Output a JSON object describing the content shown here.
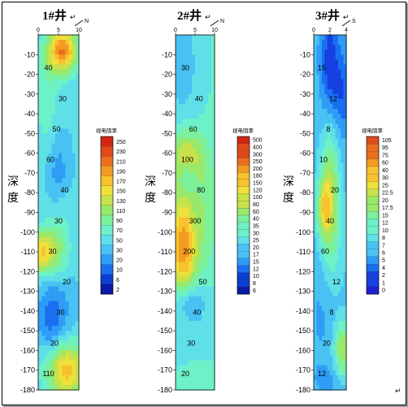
{
  "colors": {
    "ramp1": [
      "#0a1aa8",
      "#0b3fd2",
      "#1a6ff0",
      "#2f9cf5",
      "#49c2f3",
      "#5fe0e8",
      "#6ef0c8",
      "#7cf09a",
      "#9ae86a",
      "#c7e24c",
      "#efe03a",
      "#f7c22e",
      "#f39a23",
      "#ea6e1d",
      "#de4a19",
      "#d02814"
    ],
    "ramp2": [
      "#0a1aa8",
      "#0b3fd2",
      "#1a6ff0",
      "#2f9cf5",
      "#49c2f3",
      "#5fe0e8",
      "#6ef0c8",
      "#7cf09a",
      "#9ae86a",
      "#c7e24c",
      "#efe03a",
      "#f7c22e",
      "#f39a23",
      "#ea6e1d",
      "#de4a19",
      "#d02814"
    ],
    "ramp3": [
      "#2020d0",
      "#1640e0",
      "#1a6ff0",
      "#2f9cf5",
      "#49c2f3",
      "#5fe0e8",
      "#6ef0c8",
      "#7cf09a",
      "#9ae86a",
      "#c7e24c",
      "#efe03a",
      "#f7c22e",
      "#f39a23",
      "#ea6e1d",
      "#de4a19"
    ]
  },
  "chart_data": [
    {
      "type": "heatmap",
      "title": "1#井",
      "north_label": "N",
      "xlim": [
        0,
        10
      ],
      "x_ticks": [
        "0",
        "5",
        "10"
      ],
      "ylim": [
        -180,
        0
      ],
      "y_ticks": [
        "-10",
        "-20",
        "-30",
        "-40",
        "-50",
        "-60",
        "-70",
        "-80",
        "-90",
        "-100",
        "-110",
        "-120",
        "-130",
        "-140",
        "-150",
        "-160",
        "-170",
        "-180"
      ],
      "ylabel": "深度",
      "legend_title": "视电阻率",
      "legend_levels": [
        "250",
        "230",
        "210",
        "190",
        "170",
        "150",
        "130",
        "110",
        "90",
        "70",
        "50",
        "30",
        "20",
        "10",
        "6",
        "2"
      ],
      "contour_labels": [
        "40",
        "30",
        "50",
        "60",
        "40",
        "30",
        "30",
        "20",
        "30",
        "20",
        "110"
      ]
    },
    {
      "type": "heatmap",
      "title": "2#井",
      "north_label": "N",
      "xlim": [
        0,
        10
      ],
      "x_ticks": [
        "0",
        "5",
        "10"
      ],
      "ylim": [
        -180,
        0
      ],
      "y_ticks": [
        "-10",
        "-20",
        "-30",
        "-40",
        "-50",
        "-60",
        "-70",
        "-80",
        "-90",
        "-100",
        "-110",
        "-120",
        "-130",
        "-140",
        "-150",
        "-160",
        "-170",
        "-180"
      ],
      "ylabel": "深度",
      "legend_title": "视电阻率",
      "legend_levels": [
        "500",
        "400",
        "300",
        "250",
        "200",
        "180",
        "150",
        "120",
        "100",
        "80",
        "60",
        "40",
        "35",
        "30",
        "25",
        "20",
        "17",
        "15",
        "12",
        "10",
        "8",
        "6"
      ],
      "contour_labels": [
        "30",
        "40",
        "60",
        "100",
        "80",
        "300",
        "200",
        "50",
        "40",
        "30",
        "20"
      ]
    },
    {
      "type": "heatmap",
      "title": "3#井",
      "north_label": "S",
      "xlim": [
        0,
        4
      ],
      "x_ticks": [
        "0",
        "2",
        "4"
      ],
      "ylim": [
        -180,
        0
      ],
      "y_ticks": [
        "-10",
        "-20",
        "-30",
        "-40",
        "-50",
        "-60",
        "-70",
        "-80",
        "-90",
        "-100",
        "-110",
        "-120",
        "-130",
        "-140",
        "-150",
        "-160",
        "-170",
        "-180"
      ],
      "ylabel": "深度",
      "legend_title": "视电阻率",
      "legend_levels": [
        "105",
        "95",
        "75",
        "60",
        "40",
        "30",
        "25",
        "22.5",
        "20",
        "17.5",
        "15",
        "12",
        "10",
        "8",
        "7",
        "6",
        "5",
        "4",
        "2",
        "1",
        "0"
      ],
      "contour_labels": [
        "15",
        "12",
        "8",
        "10",
        "20",
        "40",
        "60",
        "12",
        "8",
        "20",
        "12"
      ]
    }
  ]
}
